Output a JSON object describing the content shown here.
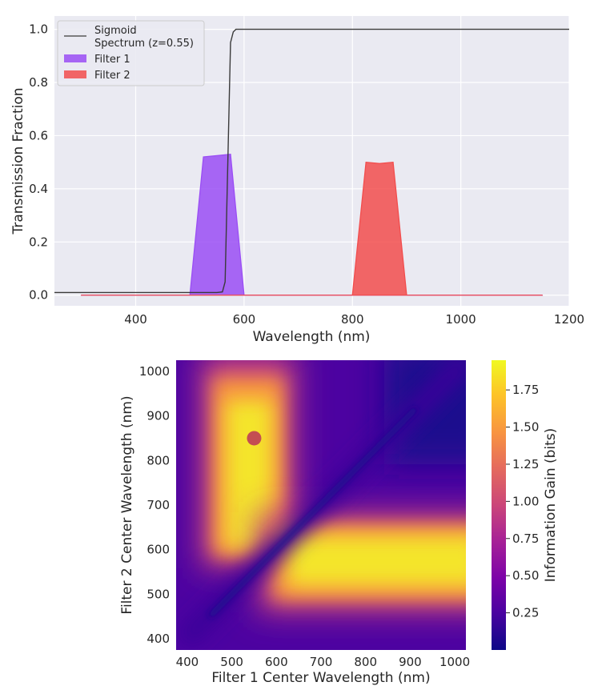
{
  "chart_data": [
    {
      "type": "line",
      "title": "",
      "xlabel": "Wavelength (nm)",
      "ylabel": "Transmission Fraction",
      "xlim": [
        250,
        1200
      ],
      "ylim": [
        -0.04,
        1.05
      ],
      "x_ticks": [
        400,
        600,
        800,
        1000,
        1200
      ],
      "x_tick_labels": [
        "400",
        "600",
        "800",
        "1000",
        "1200"
      ],
      "y_ticks": [
        0.0,
        0.2,
        0.4,
        0.6,
        0.8,
        1.0
      ],
      "y_tick_labels": [
        "0.0",
        "0.2",
        "0.4",
        "0.6",
        "0.8",
        "1.0"
      ],
      "grid": true,
      "legend_position": "top-left",
      "series": [
        {
          "name": "Sigmoid\nSpectrum (z=0.55)",
          "label_lines": [
            "Sigmoid",
            "Spectrum (z=0.55)"
          ],
          "kind": "line",
          "color": "#3a3a3a",
          "x": [
            250,
            550,
            560,
            565,
            570,
            575,
            580,
            585,
            600,
            700,
            900,
            1200
          ],
          "y": [
            0.01,
            0.01,
            0.012,
            0.05,
            0.5,
            0.95,
            0.99,
            1.0,
            1.0,
            1.0,
            1.0,
            1.0
          ]
        },
        {
          "name": "Filter 1",
          "kind": "area",
          "color": "#9a4df5",
          "x": [
            300,
            500,
            525,
            550,
            575,
            600,
            1150
          ],
          "y": [
            0.0,
            0.0,
            0.52,
            0.525,
            0.53,
            0.0,
            0.0
          ]
        },
        {
          "name": "Filter 2",
          "kind": "area",
          "color": "#f24d4d",
          "x": [
            300,
            800,
            825,
            850,
            875,
            900,
            1150
          ],
          "y": [
            0.0,
            0.0,
            0.5,
            0.495,
            0.5,
            0.0,
            0.0
          ]
        }
      ]
    },
    {
      "type": "heatmap",
      "title": "",
      "xlabel": "Filter 1 Center Wavelength (nm)",
      "ylabel": "Filter 2 Center Wavelength (nm)",
      "xlim": [
        375,
        1025
      ],
      "ylim": [
        375,
        1025
      ],
      "x_ticks": [
        400,
        500,
        600,
        700,
        800,
        900,
        1000
      ],
      "x_tick_labels": [
        "400",
        "500",
        "600",
        "700",
        "800",
        "900",
        "1000"
      ],
      "y_ticks": [
        400,
        500,
        600,
        700,
        800,
        900,
        1000
      ],
      "y_tick_labels": [
        "400",
        "500",
        "600",
        "700",
        "800",
        "900",
        "1000"
      ],
      "colormap": "plasma",
      "colorbar": {
        "label": "Information Gain (bits)",
        "range": [
          0.0,
          1.95
        ],
        "ticks": [
          0.25,
          0.5,
          0.75,
          1.0,
          1.25,
          1.5,
          1.75
        ],
        "tick_labels": [
          "0.25",
          "0.50",
          "0.75",
          "1.00",
          "1.25",
          "1.50",
          "1.75"
        ]
      },
      "marker": {
        "x": 550,
        "y": 850,
        "color": "#c44e52"
      },
      "hotspots": [
        {
          "filter1_center": 550,
          "filter2_center_range": [
            550,
            1025
          ],
          "peak": 1.9
        },
        {
          "filter1_center_range": [
            550,
            1025
          ],
          "filter2_center": 560,
          "peak": 1.95
        }
      ]
    }
  ]
}
